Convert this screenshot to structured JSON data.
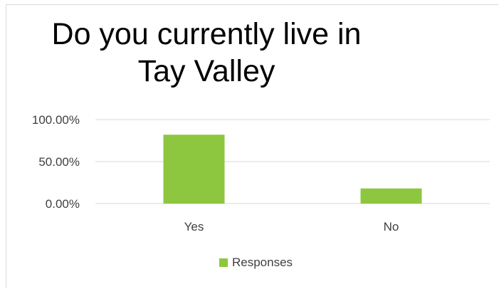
{
  "chart_data": {
    "type": "bar",
    "title_lines": [
      "Do you currently live in",
      "Tay Valley"
    ],
    "categories": [
      "Yes",
      "No"
    ],
    "series": [
      {
        "name": "Responses",
        "values": [
          0.82,
          0.18
        ],
        "color": "#8dc63f"
      }
    ],
    "ylim": [
      0,
      1
    ],
    "yticks": [
      0,
      0.5,
      1
    ],
    "ytick_labels": [
      "0.00%",
      "50.00%",
      "100.00%"
    ],
    "grid": true,
    "legend": "bottom",
    "gridline_color": "#d9d9d9"
  }
}
